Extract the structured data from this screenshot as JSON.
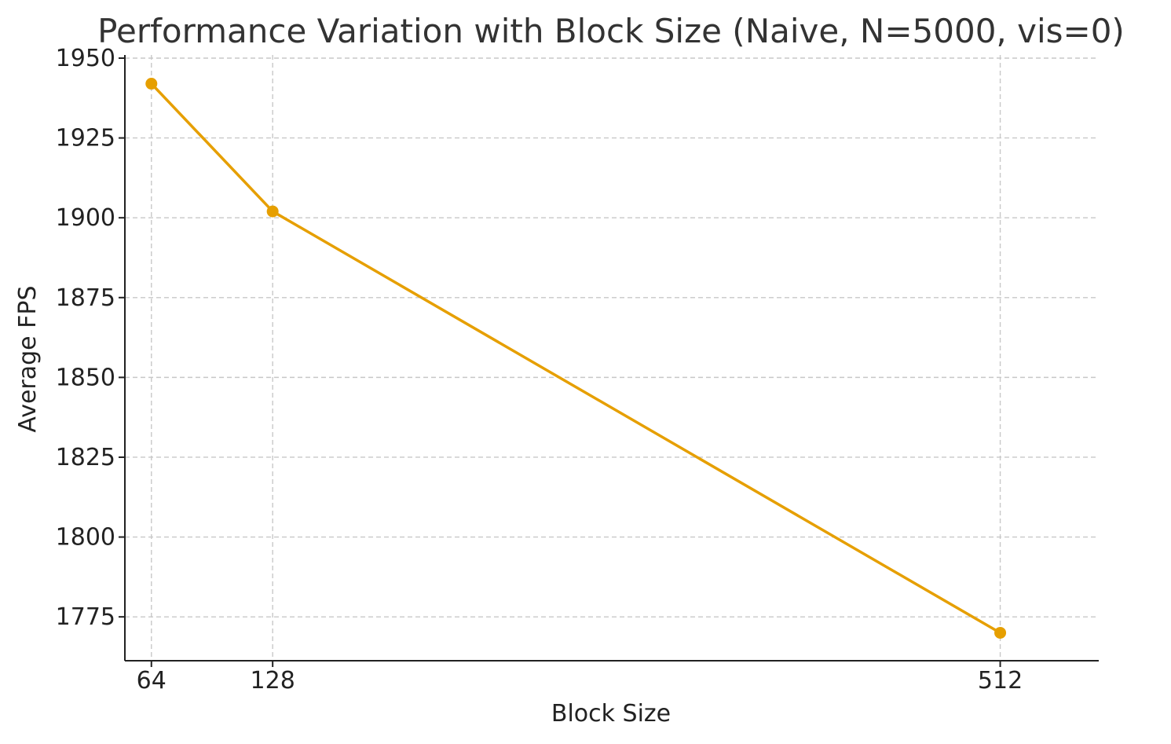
{
  "chart_data": {
    "type": "line",
    "title": "Performance Variation with Block Size (Naive, N=5000, vis=0)",
    "xlabel": "Block Size",
    "ylabel": "Average FPS",
    "x": [
      64,
      128,
      512
    ],
    "x_ticks": [
      "64",
      "128",
      "512"
    ],
    "y_ticks": [
      "1775",
      "1800",
      "1825",
      "1850",
      "1875",
      "1900",
      "1925",
      "1950"
    ],
    "xlim": [
      50,
      564
    ],
    "ylim": [
      1762,
      1950
    ],
    "grid": true,
    "series": [
      {
        "values": [
          1942,
          1902,
          1770
        ],
        "color": "#e69f00"
      }
    ]
  }
}
